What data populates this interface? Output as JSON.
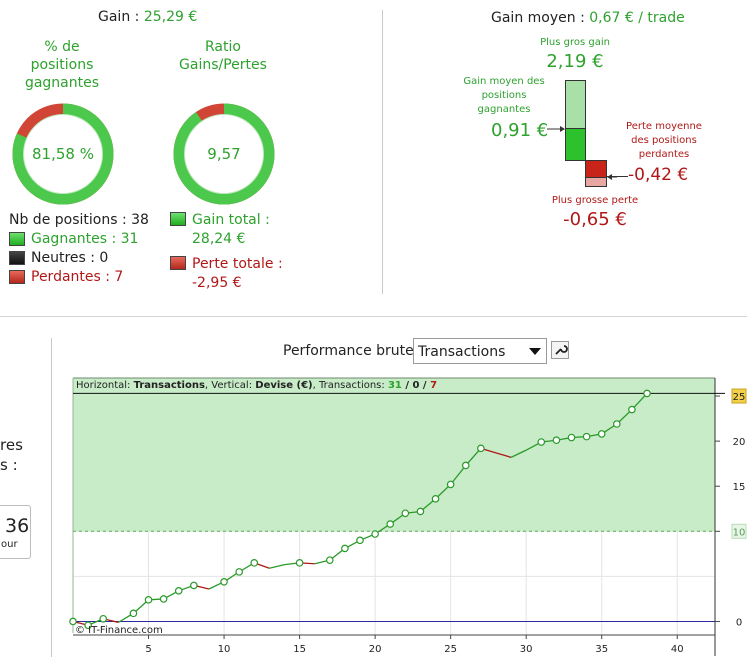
{
  "summary": {
    "gain_label": "Gain : ",
    "gain_value": "25,29 €",
    "pct_title_l1": "% de",
    "pct_title_l2": "positions",
    "pct_title_l3": "gagnantes",
    "pct_value": "81,58 %",
    "pct_fraction": 0.8158,
    "ratio_title_l1": "Ratio",
    "ratio_title_l2": "Gains/Pertes",
    "ratio_value": "9,57",
    "ratio_fraction": 0.905,
    "nb_positions": "Nb de positions : 38",
    "winners": "Gagnantes : 31",
    "neutral": "Neutres : 0",
    "losers": "Perdantes : 7",
    "total_gain_l1": "Gain total :",
    "total_gain_l2": "28,24 €",
    "total_loss_l1": "Perte totale :",
    "total_loss_l2": "-2,95 €"
  },
  "average": {
    "title_label": "Gain moyen : ",
    "title_value": "0,67 € / trade",
    "biggest_gain_label": "Plus gros gain",
    "biggest_gain_value": "2,19 €",
    "avg_win_l1": "Gain moyen des",
    "avg_win_l2": "positions",
    "avg_win_l3": "gagnantes",
    "avg_win_value": "0,91 €",
    "avg_loss_l1": "Perte moyenne",
    "avg_loss_l2": "des positions",
    "avg_loss_l3": "perdantes",
    "avg_loss_value": "-0,42 €",
    "biggest_loss_label": "Plus grosse perte",
    "biggest_loss_value": "-0,65 €"
  },
  "left_partial": {
    "text1": "res",
    "text2": "s :",
    "box_value": "36",
    "box_sub": "our"
  },
  "performance": {
    "label": "Performance brute",
    "select_value": "Transactions",
    "chart_header": {
      "p1": "Horizontal: ",
      "p2": "Transactions",
      "p3": ", Vertical: ",
      "p4": "Devise (€)",
      "p5": ", Transactions: ",
      "wins": "31",
      "sep1": " / ",
      "neutral": "0",
      "sep2": " / ",
      "losses": "7"
    },
    "copyright": "© IT-Finance.com"
  },
  "colors": {
    "gain_green": "#2ea12e",
    "loss_red": "#b01818",
    "chart_band": "#c8ebc8",
    "line_green": "#2a9a2a",
    "line_red": "#b01818"
  },
  "chart_data": {
    "type": "line",
    "xlim": [
      0,
      42.5
    ],
    "ylim": [
      -1.5,
      27
    ],
    "x_ticks": [
      "5",
      "10",
      "15",
      "20",
      "25",
      "30",
      "35",
      "40"
    ],
    "y_ticks": [
      "25",
      "20",
      "15",
      "10",
      "0"
    ],
    "current_value_label": "25",
    "reference_line": 25.29,
    "green_band_from": 10,
    "points": [
      [
        0,
        0.0
      ],
      [
        1,
        -0.42
      ],
      [
        2,
        0.3
      ],
      [
        3,
        -0.1
      ],
      [
        4,
        0.9
      ],
      [
        5,
        2.4
      ],
      [
        6,
        2.5
      ],
      [
        7,
        3.4
      ],
      [
        8,
        4.0
      ],
      [
        9,
        3.6
      ],
      [
        10,
        4.4
      ],
      [
        11,
        5.5
      ],
      [
        12,
        6.5
      ],
      [
        13,
        5.9
      ],
      [
        14,
        6.3
      ],
      [
        15,
        6.5
      ],
      [
        16,
        6.4
      ],
      [
        17,
        6.8
      ],
      [
        18,
        8.1
      ],
      [
        19,
        9.0
      ],
      [
        20,
        9.7
      ],
      [
        21,
        10.8
      ],
      [
        22,
        12.0
      ],
      [
        23,
        12.2
      ],
      [
        24,
        13.6
      ],
      [
        25,
        15.2
      ],
      [
        26,
        17.3
      ],
      [
        27,
        19.2
      ],
      [
        28,
        18.7
      ],
      [
        29,
        18.2
      ],
      [
        30,
        19.0
      ],
      [
        31,
        19.9
      ],
      [
        32,
        20.1
      ],
      [
        33,
        20.4
      ],
      [
        34,
        20.5
      ],
      [
        35,
        20.8
      ],
      [
        36,
        21.9
      ],
      [
        37,
        23.5
      ],
      [
        38,
        25.29
      ]
    ],
    "open_markers": [
      0,
      1,
      2,
      4,
      5,
      6,
      7,
      8,
      10,
      11,
      12,
      15,
      17,
      18,
      19,
      20,
      21,
      22,
      23,
      24,
      25,
      26,
      27,
      31,
      32,
      33,
      34,
      35,
      36,
      37,
      38
    ]
  }
}
